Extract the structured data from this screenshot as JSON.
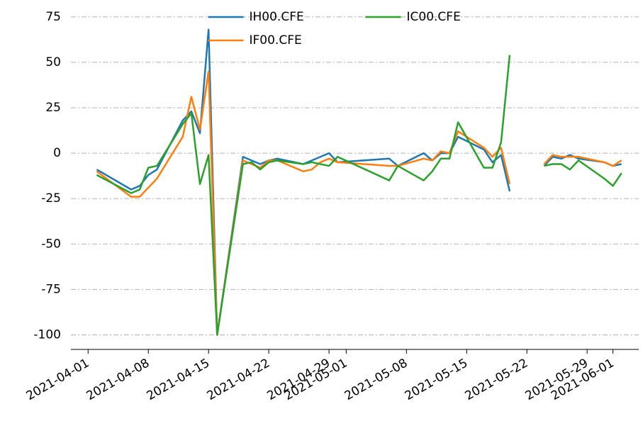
{
  "chart_data": {
    "type": "line",
    "x": [
      "2021-04-02",
      "2021-04-06",
      "2021-04-07",
      "2021-04-08",
      "2021-04-09",
      "2021-04-12",
      "2021-04-13",
      "2021-04-14",
      "2021-04-15",
      "2021-04-16",
      "2021-04-19",
      "2021-04-20",
      "2021-04-21",
      "2021-04-22",
      "2021-04-23",
      "2021-04-26",
      "2021-04-27",
      "2021-04-28",
      "2021-04-29",
      "2021-04-30",
      "2021-05-06",
      "2021-05-07",
      "2021-05-10",
      "2021-05-11",
      "2021-05-12",
      "2021-05-13",
      "2021-05-14",
      "2021-05-17",
      "2021-05-18",
      "2021-05-19",
      "2021-05-20",
      "2021-05-21",
      "2021-05-24",
      "2021-05-25",
      "2021-05-26",
      "2021-05-27",
      "2021-05-28",
      "2021-05-31",
      "2021-06-01",
      "2021-06-02"
    ],
    "series": [
      {
        "name": "IH00.CFE",
        "color": "#1f77b4",
        "values": [
          -9,
          -20,
          -18,
          -12,
          -9,
          18,
          23,
          11,
          68,
          -100,
          -2,
          -4,
          -6,
          -4,
          -3,
          -6,
          -4,
          -2,
          0,
          -5,
          -3,
          -7,
          0,
          -4,
          0,
          0,
          9,
          2,
          -5,
          -1,
          -21,
          null,
          -7,
          -2,
          -3,
          -1,
          -3,
          -5,
          -7,
          -6
        ]
      },
      {
        "name": "IF00.CFE",
        "color": "#ff7f0e",
        "values": [
          -10,
          -24,
          -24,
          -19,
          -14,
          9,
          31,
          13,
          45,
          -100,
          -4,
          -6,
          -8,
          -4,
          -4,
          -10,
          -9,
          -5,
          -3,
          -5,
          -7,
          -7,
          -3,
          -4,
          1,
          0,
          12,
          3,
          -2,
          3,
          -17,
          null,
          -6,
          -1,
          -2,
          -2,
          -2,
          -5,
          -7,
          -4
        ]
      },
      {
        "name": "IC00.CFE",
        "color": "#2ca02c",
        "values": [
          -12,
          -22,
          -20,
          -8,
          -7,
          16,
          22,
          -17,
          -1,
          -100,
          -6,
          -5,
          -9,
          -5,
          -4,
          -6,
          -5,
          -6,
          -7,
          -2,
          -15,
          -7,
          -15,
          -10,
          -3,
          -3,
          17,
          -8,
          -8,
          6,
          54,
          null,
          -7,
          -6,
          -6,
          -9,
          -4,
          -14,
          -18,
          -11
        ]
      }
    ],
    "xlim": [
      "2021-03-30",
      "2021-06-04"
    ],
    "xticks": [
      "2021-04-01",
      "2021-04-08",
      "2021-04-15",
      "2021-04-22",
      "2021-04-29",
      "2021-05-01",
      "2021-05-08",
      "2021-05-15",
      "2021-05-22",
      "2021-05-29",
      "2021-06-01"
    ],
    "ylim": [
      -108,
      80
    ],
    "yticks": [
      -100,
      -75,
      -50,
      -25,
      0,
      25,
      50,
      75
    ],
    "grid": true,
    "legend": "upper center"
  }
}
